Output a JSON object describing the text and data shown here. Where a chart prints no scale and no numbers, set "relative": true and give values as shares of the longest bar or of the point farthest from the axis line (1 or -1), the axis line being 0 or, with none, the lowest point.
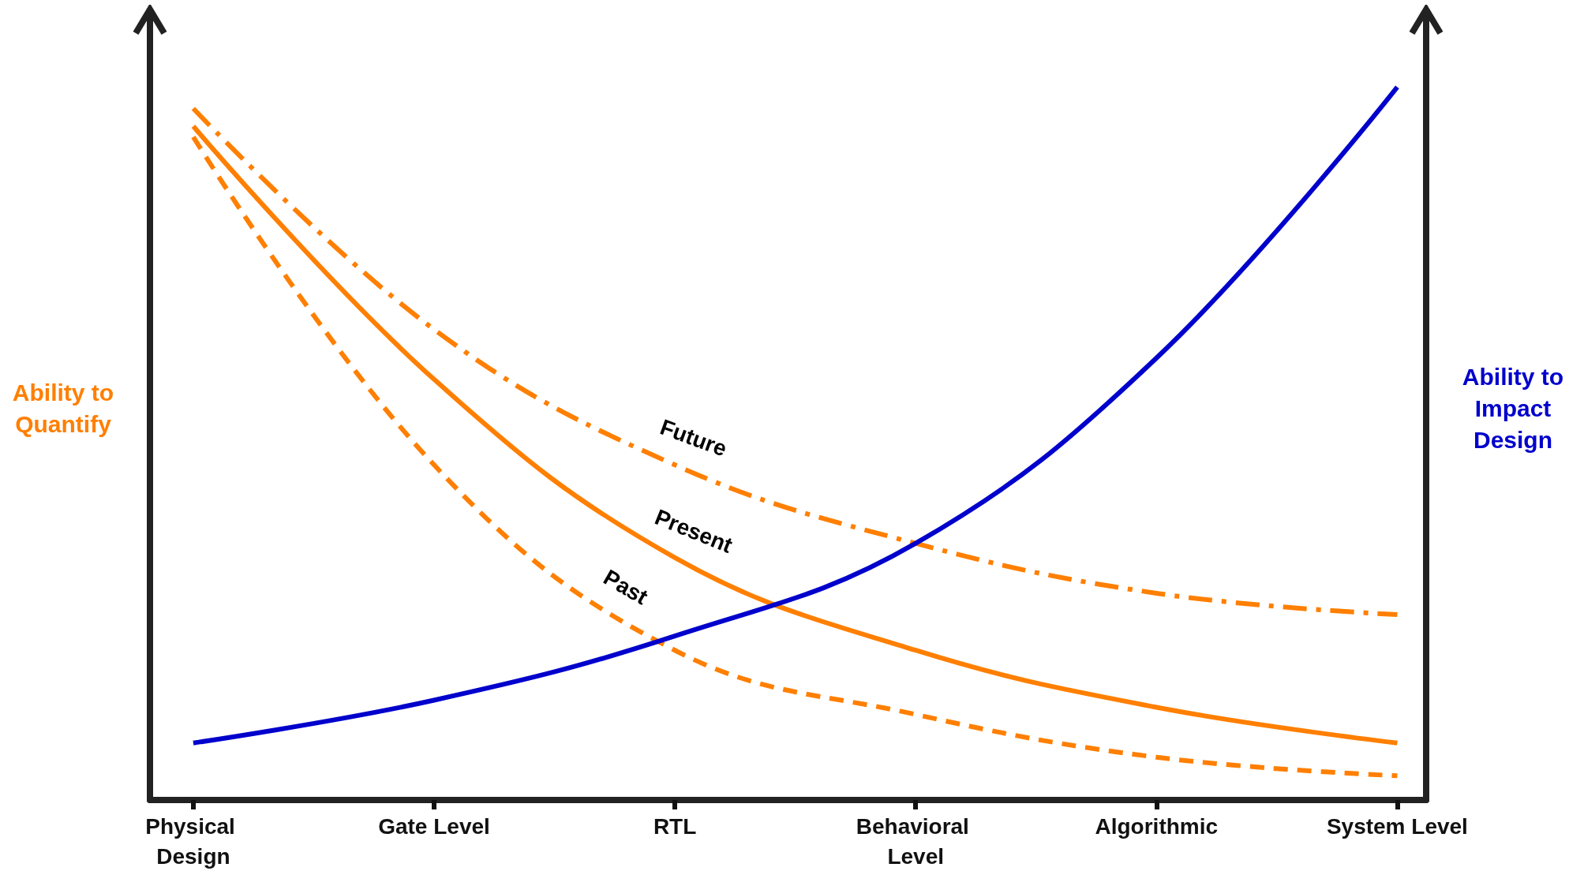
{
  "chart_data": {
    "type": "line",
    "relative": true,
    "ylabel": "Ability to Quantify",
    "y2label": "Ability to Impact Design",
    "categories": [
      "Physical Design",
      "Gate Level",
      "RTL",
      "Behavioral Level",
      "Algorithmic",
      "System Level"
    ],
    "tick_labels": "x",
    "grid": false,
    "marker": "none",
    "series": [
      {
        "name": "Future",
        "color": "#ff7f00",
        "line_style": "dashdot",
        "values": [
          0.97,
          0.66,
          0.47,
          0.36,
          0.29,
          0.26
        ]
      },
      {
        "name": "Present",
        "color": "#ff7f00",
        "line_style": "solid",
        "values": [
          0.945,
          0.59,
          0.34,
          0.21,
          0.13,
          0.08
        ]
      },
      {
        "name": "Past",
        "color": "#ff7f00",
        "line_style": "dashed",
        "values": [
          0.93,
          0.47,
          0.21,
          0.12,
          0.06,
          0.034
        ]
      },
      {
        "color": "#0000cc",
        "axis": "y2",
        "line_style": "solid",
        "values": [
          0.08,
          0.14,
          0.23,
          0.36,
          0.62,
          1
        ]
      }
    ]
  }
}
